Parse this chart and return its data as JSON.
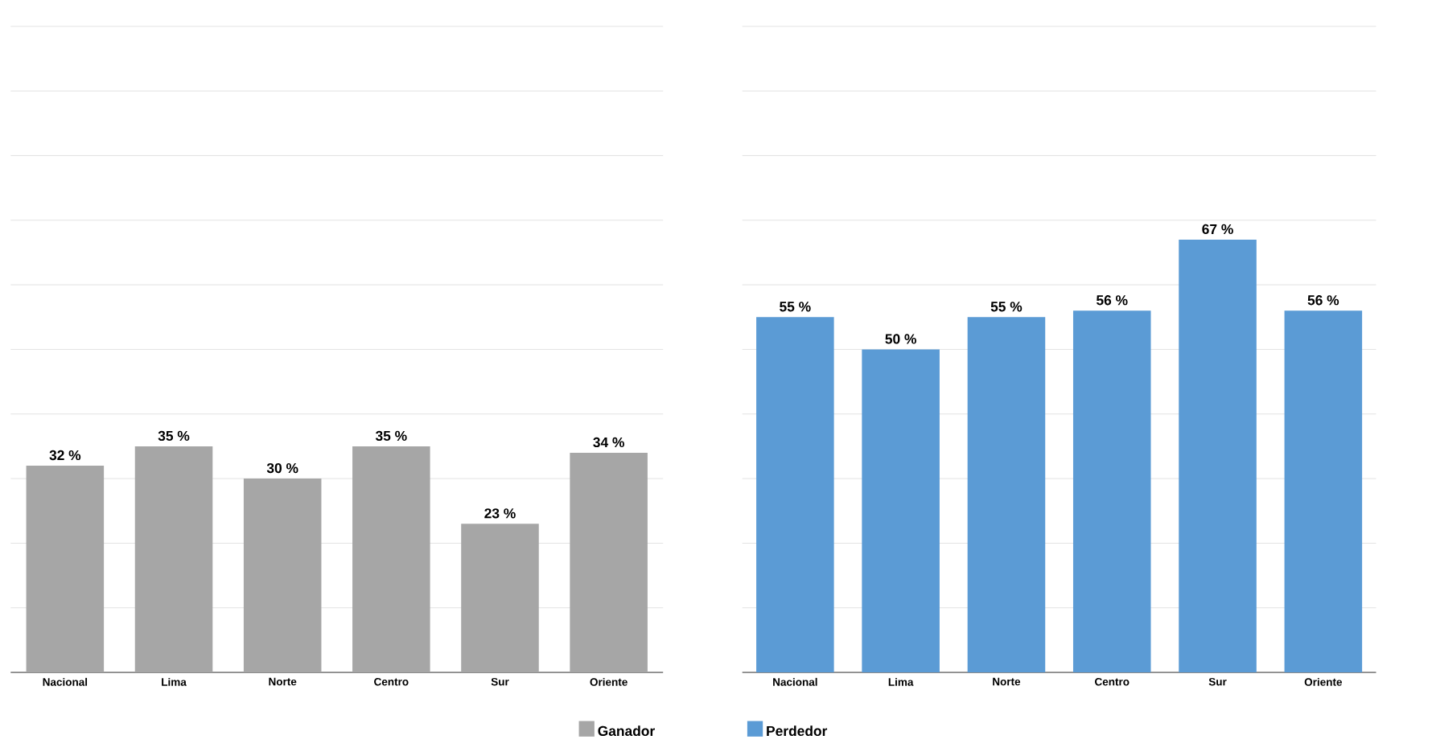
{
  "chart_data": [
    {
      "type": "bar",
      "categories": [
        "Nacional",
        "Lima",
        "Norte",
        "Centro",
        "Sur",
        "Oriente"
      ],
      "series": [
        {
          "name": "Ganador",
          "color": "#a6a6a6",
          "values": [
            32,
            35,
            30,
            35,
            23,
            34
          ],
          "value_labels": [
            "32 %",
            "35 %",
            "30 %",
            "35 %",
            "23 %",
            "34 %"
          ]
        }
      ],
      "ylim": [
        0,
        100
      ],
      "yticks": [
        {
          "value": 0,
          "label": null
        },
        {
          "value": 10,
          "label": null
        },
        {
          "value": 20,
          "label": null
        },
        {
          "value": 30,
          "label": null
        },
        {
          "value": 40,
          "label": null
        },
        {
          "value": 50,
          "label": null
        },
        {
          "value": 60,
          "label": null
        },
        {
          "value": 70,
          "label": null
        },
        {
          "value": 80,
          "label": null
        },
        {
          "value": 90,
          "label": null
        },
        {
          "value": 100,
          "label": null
        }
      ],
      "grid": "y",
      "tick_labels": "x",
      "legend": "bottom"
    },
    {
      "type": "bar",
      "categories": [
        "Nacional",
        "Lima",
        "Norte",
        "Centro",
        "Sur",
        "Oriente"
      ],
      "series": [
        {
          "name": "Perdedor",
          "color": "#5b9bd5",
          "values": [
            55,
            50,
            55,
            56,
            67,
            56
          ],
          "value_labels": [
            "55 %",
            "50 %",
            "55 %",
            "56 %",
            "67 %",
            "56 %"
          ]
        }
      ],
      "ylim": [
        0,
        100
      ],
      "yticks": [
        {
          "value": 0,
          "label": null
        },
        {
          "value": 10,
          "label": null
        },
        {
          "value": 20,
          "label": null
        },
        {
          "value": 30,
          "label": null
        },
        {
          "value": 40,
          "label": null
        },
        {
          "value": 50,
          "label": null
        },
        {
          "value": 60,
          "label": null
        },
        {
          "value": 70,
          "label": null
        },
        {
          "value": 80,
          "label": null
        },
        {
          "value": 90,
          "label": null
        },
        {
          "value": 100,
          "label": null
        }
      ],
      "grid": "y",
      "tick_labels": "x",
      "legend": "bottom"
    }
  ]
}
